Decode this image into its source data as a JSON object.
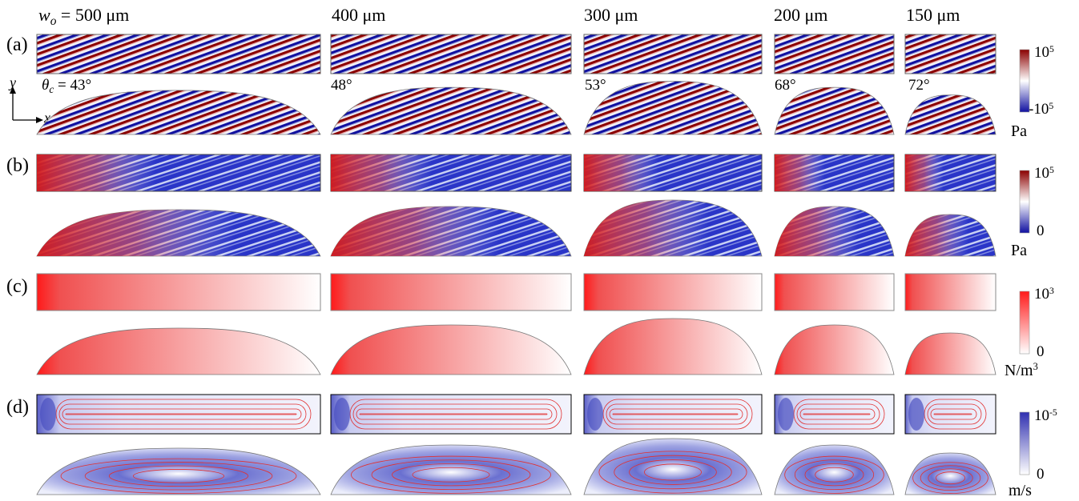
{
  "column_headers": [
    {
      "sym": "w",
      "sub": "o",
      "eq": " = ",
      "value": "500 μm"
    },
    {
      "value": "400 μm"
    },
    {
      "value": "300 μm"
    },
    {
      "value": "200 μm"
    },
    {
      "value": "150 μm"
    }
  ],
  "row_labels": [
    "(a)",
    "(b)",
    "(c)",
    "(d)"
  ],
  "contact_angles": [
    {
      "sym": "θ",
      "sub": "c",
      "eq": " = ",
      "value": "43°"
    },
    {
      "value": "48°"
    },
    {
      "value": "53°"
    },
    {
      "value": "68°"
    },
    {
      "value": "72°"
    }
  ],
  "axes": {
    "y": "y",
    "x": "x"
  },
  "colorbars": [
    {
      "max_base": "10",
      "max_exp": "5",
      "min_base": "-10",
      "min_exp": "5",
      "unit": "Pa",
      "low_color": "#1010a0",
      "mid_color": "#ffffff",
      "high_color": "#8b0000"
    },
    {
      "max_base": "10",
      "max_exp": "5",
      "min_base": "0",
      "min_exp": "",
      "unit": "Pa",
      "low_color": "#1010a0",
      "mid_color": "#ffffff",
      "high_color": "#8b0000"
    },
    {
      "max_base": "10",
      "max_exp": "3",
      "min_base": "0",
      "min_exp": "",
      "unit_base": "N/m",
      "unit_exp": "3",
      "low_color": "#ffffff",
      "high_color": "#ff1a1a"
    },
    {
      "max_base": "10",
      "max_exp": "-5",
      "min_base": "0",
      "min_exp": "",
      "unit": "m/s",
      "low_color": "#ffffff",
      "high_color": "#3030b0"
    }
  ]
}
